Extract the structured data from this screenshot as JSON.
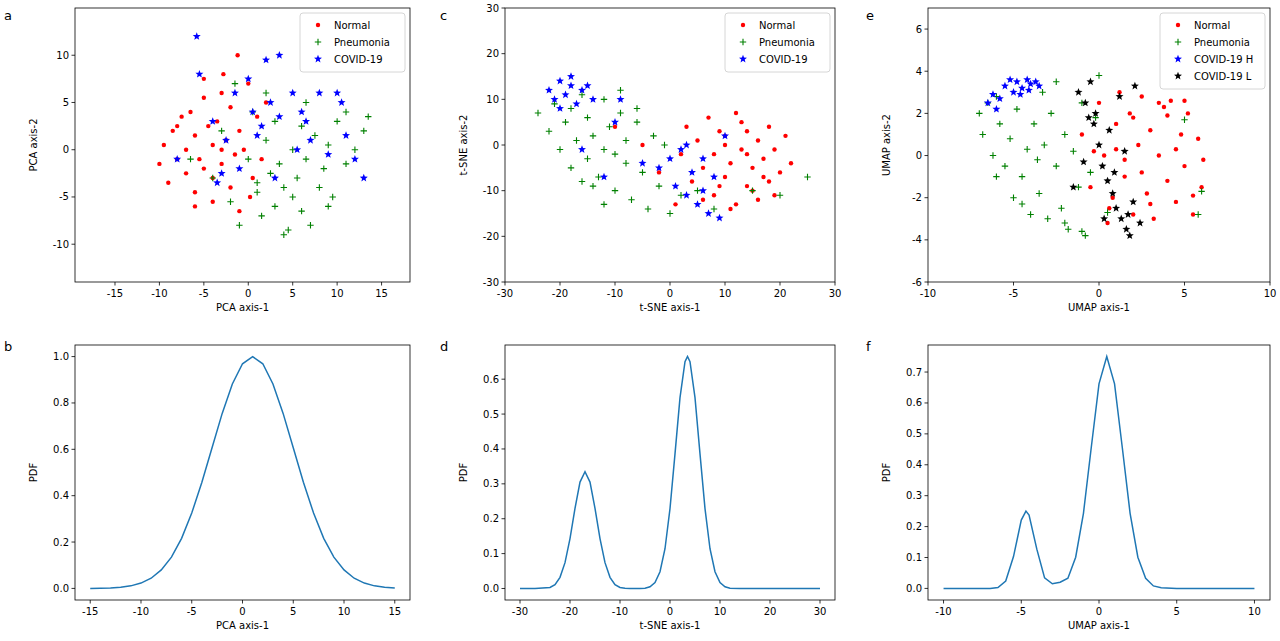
{
  "chart_data": [
    {
      "type": "scatter",
      "title": "a",
      "xlabel": "PCA axis-1",
      "ylabel": "PCA axis-2",
      "xlim": [
        -19.5,
        18.2
      ],
      "ylim": [
        -14,
        15
      ],
      "xticks": [
        -15,
        -10,
        -5,
        0,
        5,
        10,
        15
      ],
      "yticks": [
        -10,
        -5,
        0,
        5,
        10
      ],
      "legend": "upper right",
      "series": [
        {
          "name": "Normal",
          "color": "#ff0000",
          "marker": "dot",
          "x": [
            -10,
            -9.5,
            -9,
            -8.5,
            -8,
            -7.5,
            -7,
            -7,
            -6.5,
            -6,
            -6,
            -5.5,
            -5,
            -5,
            -4.5,
            -4,
            -4,
            -3.5,
            -3,
            -3,
            -2.5,
            -2,
            -2,
            -1.5,
            -1,
            -1,
            -0.5,
            0,
            0.5,
            1,
            1.5,
            2,
            -6,
            -4,
            -2.8,
            -1.2,
            -8,
            -5,
            -3,
            0.2
          ],
          "values": [
            -1.5,
            0.5,
            -3.5,
            2,
            -1,
            3.5,
            0,
            -2.5,
            4,
            -4.5,
            1.5,
            -1,
            5.5,
            -2,
            2.5,
            -5.5,
            0.5,
            3,
            -1.5,
            6,
            1,
            -4,
            4.5,
            -0.5,
            2,
            -6.5,
            0,
            7,
            -3,
            3.5,
            -1,
            5,
            -6,
            -3,
            8,
            10,
            2.5,
            7.5,
            0,
            -5
          ]
        },
        {
          "name": "Pneumonia",
          "color": "#008000",
          "marker": "plus",
          "x": [
            -4,
            -3,
            -2,
            -1,
            0,
            0.5,
            1,
            1.5,
            2,
            2.5,
            3,
            3,
            3.5,
            4,
            4.5,
            5,
            5.5,
            6,
            6,
            6.5,
            7,
            7.5,
            8,
            8.5,
            9,
            9.5,
            10,
            11,
            12,
            13,
            13.5,
            -1.5,
            2,
            4,
            6.5,
            9,
            -6.5,
            11,
            5,
            1
          ],
          "values": [
            -3,
            2,
            -5.5,
            -8,
            -1,
            4,
            -4.5,
            -7,
            1,
            -2.5,
            -6,
            3,
            -1.5,
            -4,
            -8.5,
            0,
            -3,
            -6.5,
            2.5,
            -1,
            -8,
            1.5,
            -4,
            -2,
            0.5,
            -5,
            3,
            -1.5,
            0,
            2,
            3.5,
            7,
            6,
            -9,
            5,
            -6,
            -1,
            4,
            -5,
            -3.5
          ]
        },
        {
          "name": "COVID-19",
          "color": "#0000ff",
          "marker": "star",
          "x": [
            -5.8,
            -5.5,
            -4,
            -3.5,
            -2.5,
            -1.5,
            -1,
            0,
            0.5,
            1,
            2,
            2.5,
            3,
            3.5,
            3.5,
            5,
            5.5,
            6,
            7,
            8,
            9,
            10,
            11,
            12,
            13,
            -8,
            -3,
            1.5,
            6.5,
            10.5
          ],
          "values": [
            12,
            8,
            3,
            -3.5,
            1,
            6,
            -2,
            7.5,
            4,
            1.5,
            9.5,
            5,
            -3,
            3.5,
            10,
            6,
            0,
            4,
            1,
            6,
            -0.5,
            6,
            1.5,
            -1,
            -3,
            -1,
            -2.5,
            2.5,
            3,
            5
          ]
        }
      ]
    },
    {
      "type": "line",
      "title": "b",
      "xlabel": "PCA axis-1",
      "ylabel": "PDF",
      "color": "#1f77b4",
      "xlim": [
        -16.5,
        16.5
      ],
      "ylim": [
        -0.05,
        1.05
      ],
      "xticks": [
        -15,
        -10,
        -5,
        0,
        5,
        10,
        15
      ],
      "yticks": [
        {
          "value": 0,
          "label": "0.0"
        },
        {
          "value": 0.2,
          "label": "0.2"
        },
        {
          "value": 0.4,
          "label": "0.4"
        },
        {
          "value": 0.6,
          "label": "0.6"
        },
        {
          "value": 0.8,
          "label": "0.8"
        },
        {
          "value": 1.0,
          "label": "1.0"
        }
      ],
      "x": [
        -15,
        -14,
        -13,
        -12,
        -11,
        -10,
        -9,
        -8,
        -7,
        -6,
        -5,
        -4,
        -3,
        -2,
        -1,
        0,
        1,
        2,
        3,
        4,
        5,
        6,
        7,
        8,
        9,
        10,
        11,
        12,
        13,
        14,
        15
      ],
      "values": [
        0.0,
        0.001,
        0.002,
        0.005,
        0.011,
        0.023,
        0.044,
        0.08,
        0.135,
        0.216,
        0.325,
        0.458,
        0.607,
        0.755,
        0.882,
        0.969,
        1.0,
        0.969,
        0.882,
        0.755,
        0.607,
        0.458,
        0.325,
        0.216,
        0.135,
        0.08,
        0.044,
        0.023,
        0.011,
        0.005,
        0.002
      ]
    },
    {
      "type": "scatter",
      "title": "c",
      "xlabel": "t-SNE axis-1",
      "ylabel": "t-SNE axis-2",
      "xlim": [
        -30,
        30
      ],
      "ylim": [
        -30,
        30
      ],
      "xticks": [
        -30,
        -20,
        -10,
        0,
        10,
        20,
        30
      ],
      "yticks": [
        -30,
        -20,
        -10,
        0,
        10,
        20,
        30
      ],
      "legend": "upper right",
      "series": [
        {
          "name": "Normal",
          "color": "#ff0000",
          "marker": "dot",
          "x": [
            2,
            3,
            4,
            5,
            6,
            7,
            8,
            8,
            9,
            10,
            10,
            11,
            12,
            12,
            13,
            14,
            14,
            15,
            16,
            16,
            17,
            18,
            18,
            19,
            20,
            21,
            22,
            6,
            9,
            11,
            13,
            15,
            17,
            19,
            -5,
            -10,
            -2,
            1,
            10,
            14
          ],
          "values": [
            -2,
            4,
            -8,
            1,
            -5,
            6,
            -2,
            -11,
            3,
            -7,
            0,
            -4,
            7,
            -13,
            -1,
            -9,
            3,
            -5,
            1,
            -12,
            -3,
            4,
            -8,
            -1,
            -6,
            2,
            -4,
            -12,
            -9,
            -14,
            5,
            -10,
            -7,
            -11,
            0,
            4,
            -6,
            -13,
            2,
            -2
          ]
        },
        {
          "name": "Pneumonia",
          "color": "#008000",
          "marker": "plus",
          "x": [
            -24,
            -22,
            -21,
            -20,
            -19,
            -18,
            -17,
            -16,
            -15,
            -15,
            -14,
            -13,
            -12,
            -12,
            -11,
            -10,
            -9,
            -8,
            -8,
            -7,
            -6,
            -5,
            -4,
            -3,
            -2,
            -1,
            0,
            2,
            -18,
            -14,
            -10,
            -6,
            -12,
            -16,
            5,
            8,
            15,
            20,
            25,
            -9
          ],
          "values": [
            7,
            3,
            9,
            -1,
            5,
            8,
            1,
            11,
            -3,
            6,
            2,
            -7,
            10,
            -1,
            4,
            -10,
            7,
            -4,
            1,
            -12,
            5,
            -6,
            -14,
            2,
            -9,
            0,
            -15,
            -11,
            -5,
            -9,
            -2,
            8,
            -13,
            -8,
            -10,
            -14,
            -10,
            -11,
            -7,
            12
          ]
        },
        {
          "name": "COVID-19",
          "color": "#0000ff",
          "marker": "star",
          "x": [
            -22,
            -21,
            -20,
            -19,
            -18,
            -17,
            -16,
            -15,
            -20,
            -18,
            -14,
            -9,
            -2,
            0,
            1,
            2,
            3,
            4,
            5,
            6,
            7,
            8,
            9,
            3,
            6,
            -5,
            -12,
            -16,
            -10,
            10
          ],
          "values": [
            12,
            10,
            14,
            11,
            15,
            9,
            12,
            13,
            8,
            13,
            10,
            10,
            -5,
            -3,
            -9,
            -1,
            -11,
            -6,
            -13,
            -3,
            -15,
            -7,
            -16,
            0,
            -10,
            -4,
            -7,
            -1,
            5,
            2
          ]
        }
      ]
    },
    {
      "type": "line",
      "title": "d",
      "xlabel": "t-SNE axis-1",
      "ylabel": "PDF",
      "color": "#1f77b4",
      "xlim": [
        -33,
        33
      ],
      "ylim": [
        -0.033,
        0.698
      ],
      "xticks": [
        -30,
        -20,
        -10,
        0,
        10,
        20,
        30
      ],
      "yticks": [
        {
          "value": 0,
          "label": "0.0"
        },
        {
          "value": 0.1,
          "label": "0.1"
        },
        {
          "value": 0.2,
          "label": "0.2"
        },
        {
          "value": 0.3,
          "label": "0.3"
        },
        {
          "value": 0.4,
          "label": "0.4"
        },
        {
          "value": 0.5,
          "label": "0.5"
        },
        {
          "value": 0.6,
          "label": "0.6"
        }
      ],
      "x": [
        -30,
        -27,
        -24,
        -23,
        -22,
        -21,
        -20,
        -19,
        -18,
        -17,
        -16,
        -15,
        -14,
        -13,
        -12,
        -11,
        -10,
        -9,
        -8,
        -6,
        -5,
        -4,
        -3,
        -2,
        -1,
        0,
        1,
        2,
        3,
        3.5,
        4,
        5,
        6,
        7,
        8,
        9,
        10,
        11,
        12,
        14,
        20,
        25,
        30
      ],
      "values": [
        0,
        0,
        0.003,
        0.011,
        0.032,
        0.074,
        0.143,
        0.23,
        0.305,
        0.335,
        0.305,
        0.23,
        0.143,
        0.074,
        0.032,
        0.011,
        0.003,
        0.001,
        0,
        0,
        0.001,
        0.005,
        0.017,
        0.048,
        0.114,
        0.229,
        0.386,
        0.547,
        0.65,
        0.665,
        0.65,
        0.547,
        0.386,
        0.229,
        0.114,
        0.048,
        0.017,
        0.005,
        0.001,
        0,
        0,
        0,
        0
      ]
    },
    {
      "type": "scatter",
      "title": "e",
      "xlabel": "UMAP axis-1",
      "ylabel": "UMAP axis-2",
      "xlim": [
        -10,
        10
      ],
      "ylim": [
        -6,
        7
      ],
      "xticks": [
        -10,
        -5,
        0,
        5,
        10
      ],
      "yticks": [
        -6,
        -4,
        -2,
        0,
        2,
        4,
        6
      ],
      "legend": "upper right",
      "series": [
        {
          "name": "Normal",
          "color": "#ff0000",
          "marker": "dot",
          "x": [
            -1,
            -0.5,
            0,
            0.3,
            0.6,
            1,
            1.2,
            1.5,
            1.8,
            2,
            2.3,
            2.5,
            2.8,
            3,
            3.2,
            3.5,
            3.8,
            4,
            4.2,
            4.5,
            4.8,
            5,
            5.2,
            5.5,
            5.8,
            6,
            0.5,
            1.5,
            2.5,
            3.5,
            4.5,
            5.5,
            1,
            3,
            5,
            -0.3,
            2,
            4,
            6.1,
            0.8
          ],
          "values": [
            1,
            -1.5,
            2.5,
            0,
            -2.5,
            1.5,
            3,
            -1,
            2,
            -2.8,
            0.5,
            2.8,
            -1.8,
            1.2,
            -3,
            0,
            2.3,
            -1.2,
            2.6,
            -2.2,
            1,
            -0.5,
            2,
            -2.8,
            0.8,
            -1.5,
            -3.2,
            -0.2,
            -0.8,
            2.5,
            0.3,
            -1.9,
            0.3,
            -2.3,
            2.6,
            0.2,
            1.8,
            1.9,
            -0.2,
            -2
          ]
        },
        {
          "name": "Pneumonia",
          "color": "#008000",
          "marker": "plus",
          "x": [
            -7,
            -6.8,
            -6.5,
            -6.2,
            -6,
            -5.8,
            -5.5,
            -5.2,
            -5,
            -4.8,
            -4.5,
            -4.2,
            -4,
            -3.8,
            -3.5,
            -3.2,
            -3,
            -2.8,
            -2.5,
            -2.2,
            -2,
            -1.8,
            -1.5,
            -1.2,
            -1,
            -0.8,
            -0.5,
            -0.2,
            0,
            -3.3,
            -4.5,
            -2,
            5,
            5.8,
            6,
            -1,
            -6,
            -2.5,
            0.5,
            -3.6
          ],
          "values": [
            2,
            1,
            2.5,
            0,
            -1,
            1.5,
            -0.5,
            0.8,
            -2,
            2.2,
            -1,
            0.3,
            -2.8,
            1.5,
            -1.8,
            0.5,
            -3,
            2,
            -0.5,
            -2.5,
            1,
            -3.5,
            0.2,
            -1.5,
            2.5,
            -3.8,
            -0.8,
            1.8,
            3.8,
            3,
            -2.3,
            -3.2,
            1.7,
            -2.8,
            -1.7,
            -3.6,
            2.8,
            3.5,
            -2.7,
            -0.2
          ]
        },
        {
          "name": "COVID-19 H",
          "color": "#0000ff",
          "marker": "star",
          "x": [
            -6.5,
            -6.2,
            -6,
            -5.5,
            -5.2,
            -5,
            -4.8,
            -4.5,
            -4.2,
            -4,
            -3.7,
            -3.5,
            -5.8,
            -4.6,
            -4.1
          ],
          "values": [
            2.5,
            2.9,
            2.2,
            3.3,
            3.6,
            3,
            3.5,
            3.2,
            3.6,
            3.4,
            3.5,
            3.3,
            2.7,
            2.9,
            3.1
          ]
        },
        {
          "name": "COVID-19 L",
          "color": "#000000",
          "marker": "star",
          "x": [
            -1.2,
            -0.8,
            -0.5,
            -0.3,
            0,
            0.2,
            0.5,
            0.8,
            1,
            1.3,
            1.6,
            1.8,
            2,
            2.1,
            -1.5,
            -0.9,
            0.3,
            1.2,
            1.5,
            0.6,
            -0.2,
            2.4,
            1.7,
            0.9,
            -0.6
          ],
          "values": [
            3,
            2.5,
            3.5,
            1.5,
            0.5,
            -0.5,
            -1.2,
            -1.8,
            -2.5,
            -3,
            -3.5,
            -3.8,
            -2.2,
            3.3,
            -1.5,
            -0.3,
            -3,
            2.8,
            0.2,
            1.2,
            2,
            -3.2,
            -2.8,
            -0.8,
            1.8
          ]
        }
      ]
    },
    {
      "type": "line",
      "title": "f",
      "xlabel": "UMAP axis-1",
      "ylabel": "PDF",
      "color": "#1f77b4",
      "xlim": [
        -11,
        11
      ],
      "ylim": [
        -0.0375,
        0.7875
      ],
      "xticks": [
        -10,
        -5,
        0,
        5,
        10
      ],
      "yticks": [
        {
          "value": 0,
          "label": "0.0"
        },
        {
          "value": 0.1,
          "label": "0.1"
        },
        {
          "value": 0.2,
          "label": "0.2"
        },
        {
          "value": 0.3,
          "label": "0.3"
        },
        {
          "value": 0.4,
          "label": "0.4"
        },
        {
          "value": 0.5,
          "label": "0.5"
        },
        {
          "value": 0.6,
          "label": "0.6"
        },
        {
          "value": 0.7,
          "label": "0.7"
        }
      ],
      "x": [
        -10,
        -8,
        -7,
        -6.5,
        -6,
        -5.5,
        -5,
        -4.7,
        -4.5,
        -4,
        -3.5,
        -3,
        -2.5,
        -2,
        -1.5,
        -1,
        -0.5,
        0,
        0.5,
        1,
        1.5,
        2,
        2.5,
        3,
        3.5,
        4,
        5,
        10
      ],
      "values": [
        0,
        0,
        0,
        0.003,
        0.024,
        0.103,
        0.221,
        0.25,
        0.237,
        0.127,
        0.034,
        0.015,
        0.02,
        0.033,
        0.101,
        0.243,
        0.455,
        0.662,
        0.75,
        0.662,
        0.455,
        0.243,
        0.101,
        0.033,
        0.008,
        0.002,
        0,
        0
      ]
    }
  ]
}
